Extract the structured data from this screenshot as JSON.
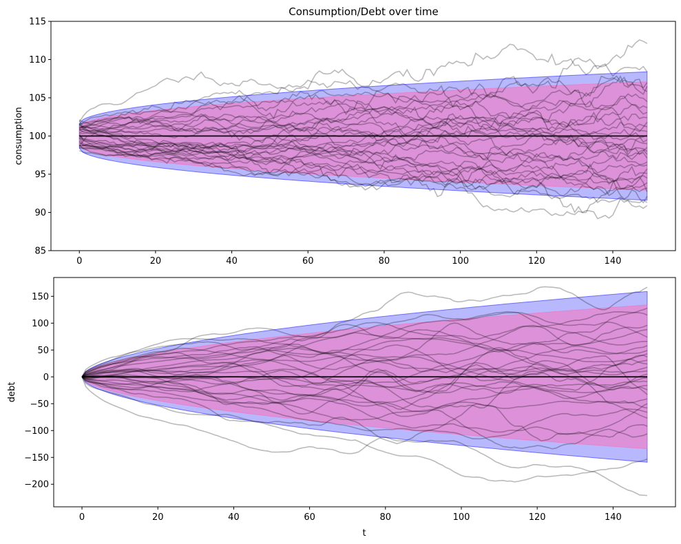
{
  "chart_data": [
    {
      "type": "line",
      "title": "Consumption/Debt over time",
      "xlabel": "",
      "ylabel": "consumption",
      "xlim": [
        -7.45,
        156.45
      ],
      "ylim": [
        85,
        115
      ],
      "xticks": [
        0,
        20,
        40,
        60,
        80,
        100,
        120,
        140
      ],
      "yticks": [
        85,
        90,
        95,
        100,
        105,
        110,
        115
      ],
      "t_max": 149,
      "mean": 100,
      "band_outer": {
        "color": "#0000ff",
        "opacity": 0.28,
        "lower_start": 98.4,
        "upper_start": 101.6,
        "lower_end": 91.6,
        "upper_end": 108.4,
        "shape": "sqrt"
      },
      "band_inner": {
        "color": "#ff69b4",
        "opacity": 0.5,
        "lower_start": 98.8,
        "upper_start": 101.2,
        "lower_end": 92.9,
        "upper_end": 107.1,
        "shape": "sqrt"
      },
      "paths": {
        "count": 30,
        "color": "#808080",
        "opacity": 0.55,
        "note_values": "representative simulated sample paths; end values listed",
        "end_values": [
          112.1,
          108.4,
          107.0,
          106.5,
          105.8,
          104.5,
          103.7,
          103.1,
          102.4,
          101.8,
          101.2,
          100.6,
          100.1,
          99.5,
          99.0,
          98.5,
          98.0,
          97.6,
          97.1,
          96.6,
          96.2,
          95.7,
          95.1,
          94.5,
          93.9,
          93.2,
          92.7,
          92.1,
          91.3,
          90.9
        ]
      },
      "mean_line_color": "#000000"
    },
    {
      "type": "line",
      "title": "",
      "xlabel": "t",
      "ylabel": "debt",
      "xlim": [
        -7.45,
        156.45
      ],
      "ylim": [
        -242,
        185
      ],
      "xticks": [
        0,
        20,
        40,
        60,
        80,
        100,
        120,
        140
      ],
      "yticks": [
        -200,
        -150,
        -100,
        -50,
        0,
        50,
        100,
        150
      ],
      "t_max": 149,
      "mean": 0,
      "band_outer": {
        "color": "#0000ff",
        "opacity": 0.28,
        "lower_start": 0,
        "upper_start": 0,
        "lower_end": -159,
        "upper_end": 159,
        "shape": "pow0.55"
      },
      "band_inner": {
        "color": "#ff69b4",
        "opacity": 0.5,
        "lower_start": 0,
        "upper_start": 0,
        "lower_end": -134,
        "upper_end": 134,
        "shape": "pow0.55"
      },
      "paths": {
        "count": 30,
        "color": "#808080",
        "opacity": 0.55,
        "note_values": "representative simulated sample paths; end values listed",
        "end_values": [
          167,
          128,
          115,
          96,
          88,
          74,
          66,
          58,
          49,
          43,
          37,
          31,
          24,
          18,
          11,
          5,
          -2,
          -9,
          -16,
          -24,
          -33,
          -41,
          -50,
          -58,
          -66,
          -77,
          -92,
          -106,
          -153,
          -221
        ]
      },
      "mean_line_color": "#000000"
    }
  ]
}
